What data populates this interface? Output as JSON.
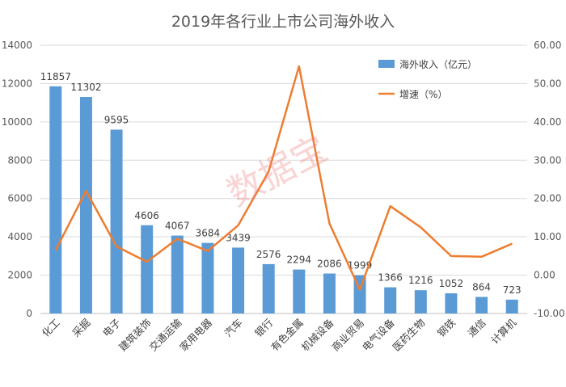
{
  "chart_data": {
    "type": "bar",
    "title": "2019年各行业上市公司海外收入",
    "categories": [
      "化工",
      "采掘",
      "电子",
      "建筑装饰",
      "交通运输",
      "家用电器",
      "汽车",
      "银行",
      "有色金属",
      "机械设备",
      "商业贸易",
      "电气设备",
      "医药生物",
      "钢铁",
      "通信",
      "计算机"
    ],
    "series": [
      {
        "name": "海外收入（亿元）",
        "type": "bar",
        "axis": "left",
        "color": "#5b9bd5",
        "values": [
          11857,
          11302,
          9595,
          4606,
          4067,
          3684,
          3439,
          2576,
          2294,
          2086,
          1999,
          1366,
          1216,
          1052,
          864,
          723
        ]
      },
      {
        "name": "增速（%）",
        "type": "line",
        "axis": "right",
        "color": "#ed7d31",
        "values": [
          6.5,
          22.0,
          7.5,
          3.5,
          9.5,
          6.3,
          13.0,
          27.0,
          54.5,
          13.5,
          -3.8,
          18.0,
          12.5,
          5.0,
          4.8,
          8.2
        ]
      }
    ],
    "ylim_left": [
      0,
      14000
    ],
    "yticks_left": [
      "0",
      "2000",
      "4000",
      "6000",
      "8000",
      "10000",
      "12000",
      "14000"
    ],
    "ylim_right": [
      -10,
      60
    ],
    "yticks_right": [
      "-10.00",
      "0.00",
      "10.00",
      "20.00",
      "30.00",
      "40.00",
      "50.00",
      "60.00"
    ],
    "grid": true,
    "legend_position": "top-right",
    "watermark": "数据宝"
  }
}
